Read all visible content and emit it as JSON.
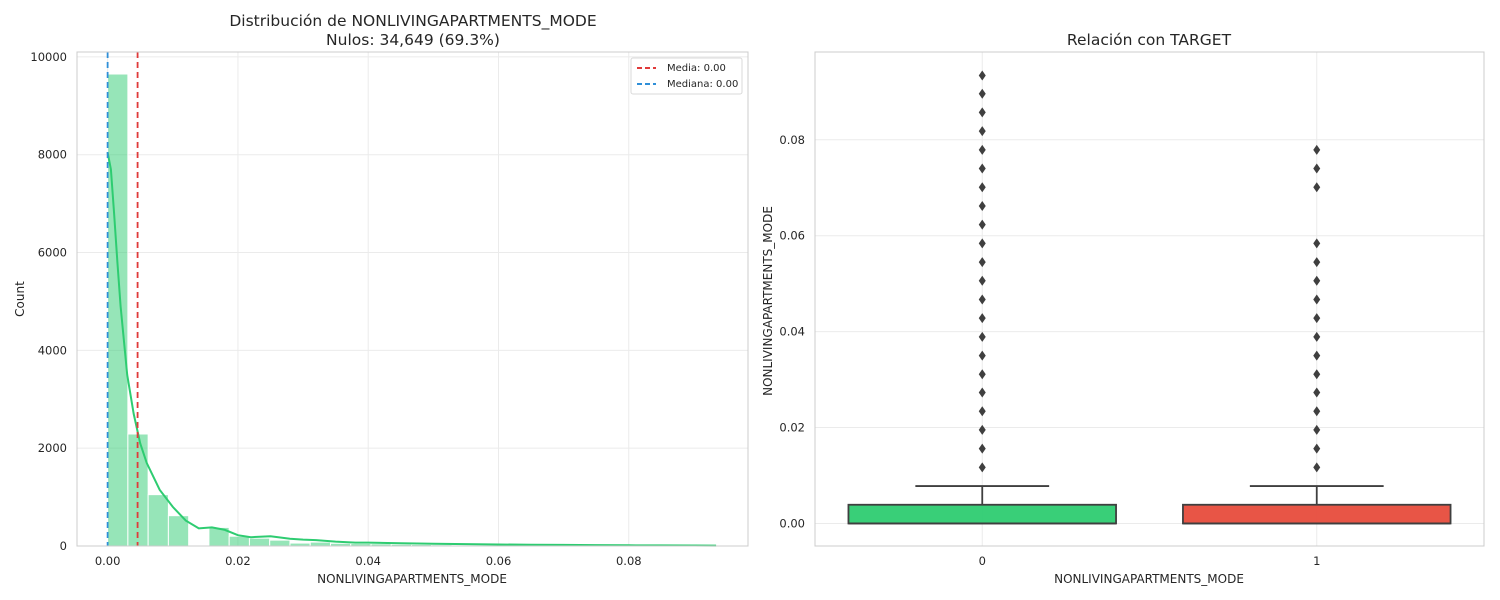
{
  "chart_data": [
    {
      "type": "histogram",
      "title": "Distribución de NONLIVINGAPARTMENTS_MODE",
      "subtitle": "Nulos: 34,649 (69.3%)",
      "xlabel": "NONLIVINGAPARTMENTS_MODE",
      "ylabel": "Count",
      "xlim": [
        -0.0047,
        0.0983
      ],
      "ylim": [
        0,
        10100
      ],
      "xticks": [
        0.0,
        0.02,
        0.04,
        0.06,
        0.08
      ],
      "xtick_labels": [
        "0.00",
        "0.02",
        "0.04",
        "0.06",
        "0.08"
      ],
      "yticks": [
        0,
        2000,
        4000,
        6000,
        8000,
        10000
      ],
      "grid": true,
      "bar_color": "#2ecc71",
      "bins": {
        "width": 0.00311,
        "edges_start": 0.0,
        "counts": [
          9650,
          2290,
          1050,
          620,
          0,
          380,
          200,
          160,
          120,
          60,
          80,
          55,
          50,
          45,
          35,
          30,
          25,
          20,
          18,
          15,
          12,
          10,
          8,
          6,
          5,
          4,
          3,
          2,
          2,
          1
        ]
      },
      "kde": {
        "color": "#2ecc71",
        "x": [
          0.0,
          0.0005,
          0.001,
          0.0015,
          0.002,
          0.003,
          0.004,
          0.005,
          0.006,
          0.008,
          0.01,
          0.012,
          0.014,
          0.016,
          0.018,
          0.02,
          0.022,
          0.025,
          0.028,
          0.03,
          0.032,
          0.035,
          0.038,
          0.04,
          0.045,
          0.05,
          0.055,
          0.06,
          0.065,
          0.07,
          0.075,
          0.08,
          0.085,
          0.09,
          0.0934
        ],
        "y": [
          8050,
          7700,
          6800,
          5800,
          4900,
          3500,
          2700,
          2100,
          1700,
          1150,
          800,
          520,
          360,
          380,
          330,
          220,
          180,
          200,
          150,
          130,
          120,
          90,
          70,
          70,
          55,
          45,
          38,
          30,
          26,
          22,
          18,
          15,
          12,
          10,
          8
        ]
      },
      "vlines": [
        {
          "label": "Media: 0.00",
          "x": 0.0046,
          "color": "#e03a3a",
          "style": "dashed"
        },
        {
          "label": "Mediana: 0.00",
          "x": 0.0,
          "color": "#2f8fd8",
          "style": "dashed"
        }
      ],
      "legend_position": "top-right"
    },
    {
      "type": "box",
      "title": "Relación con TARGET",
      "xlabel": "NONLIVINGAPARTMENTS_MODE",
      "ylabel": "NONLIVINGAPARTMENTS_MODE",
      "categories": [
        "0",
        "1"
      ],
      "ylim": [
        -0.0047,
        0.0983
      ],
      "yticks": [
        0.0,
        0.02,
        0.04,
        0.06,
        0.08
      ],
      "ytick_labels": [
        "0.00",
        "0.02",
        "0.04",
        "0.06",
        "0.08"
      ],
      "grid": true,
      "boxes": [
        {
          "category": "0",
          "q1": 0.0,
          "median": 0.0,
          "q3": 0.0039,
          "whisker_low": 0.0,
          "whisker_high": 0.0078,
          "color": "#2ecc71",
          "outliers": [
            0.0117,
            0.0156,
            0.0195,
            0.0234,
            0.0273,
            0.0311,
            0.035,
            0.0389,
            0.0428,
            0.0467,
            0.0506,
            0.0545,
            0.0584,
            0.0623,
            0.0662,
            0.0701,
            0.074,
            0.0779,
            0.0818,
            0.0857,
            0.0896,
            0.0934
          ]
        },
        {
          "category": "1",
          "q1": 0.0,
          "median": 0.0,
          "q3": 0.0039,
          "whisker_low": 0.0,
          "whisker_high": 0.0078,
          "color": "#e74c3c",
          "outliers": [
            0.0117,
            0.0156,
            0.0195,
            0.0234,
            0.0273,
            0.0311,
            0.035,
            0.0389,
            0.0428,
            0.0467,
            0.0506,
            0.0545,
            0.0584,
            0.0701,
            0.074,
            0.0779
          ]
        }
      ]
    }
  ]
}
